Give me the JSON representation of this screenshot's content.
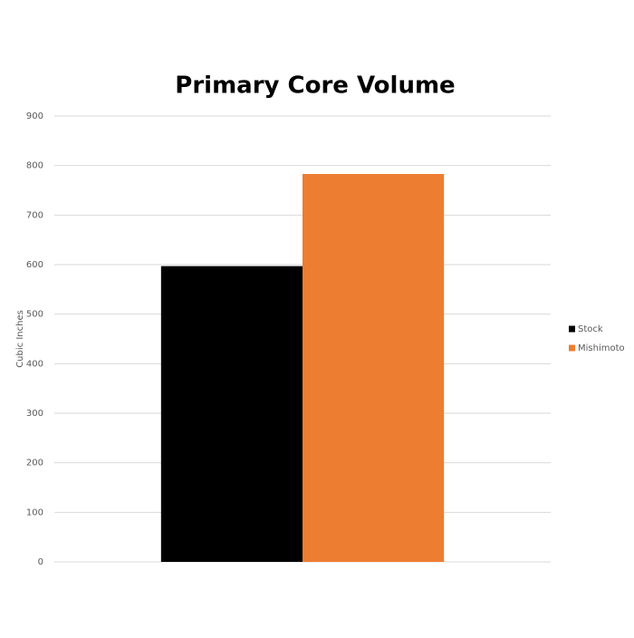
{
  "chart_data": {
    "type": "bar",
    "title": "Primary Core Volume",
    "y_label": "Cubic Inches",
    "categories": [
      null
    ],
    "series": [
      {
        "name": "Stock",
        "color": "#000000",
        "values": [
          597
        ]
      },
      {
        "name": "Mishimoto",
        "color": "#ed7d31",
        "values": [
          783
        ]
      }
    ],
    "ylim": [
      0,
      900
    ],
    "yticks": [
      0,
      100,
      200,
      300,
      400,
      500,
      600,
      700,
      800,
      900
    ],
    "grid": true,
    "legend": "right"
  }
}
